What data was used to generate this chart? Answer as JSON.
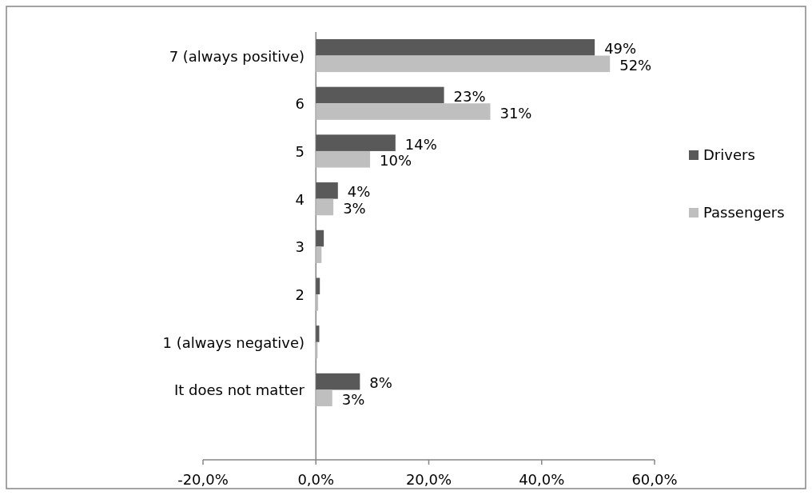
{
  "chart_data": {
    "type": "bar",
    "orientation": "horizontal",
    "categories": [
      "7 (always positive)",
      "6",
      "5",
      "4",
      "3",
      "2",
      "1 (always negative)",
      "It does not matter"
    ],
    "series": [
      {
        "name": "Drivers",
        "color": "#595959",
        "values": [
          49.4,
          22.7,
          14.1,
          3.9,
          1.4,
          0.7,
          0.6,
          7.8
        ],
        "value_labels": [
          "49%",
          "23%",
          "14%",
          "4%",
          null,
          null,
          null,
          "8%"
        ]
      },
      {
        "name": "Passengers",
        "color": "#bfbfbf",
        "values": [
          52.1,
          30.9,
          9.6,
          3.1,
          1.0,
          0.4,
          0.3,
          2.9
        ],
        "value_labels": [
          "52%",
          "31%",
          "10%",
          "3%",
          null,
          null,
          null,
          "3%"
        ]
      }
    ],
    "xlim": [
      -20,
      60
    ],
    "xticks": [
      {
        "value": -20,
        "label": "-20,0%"
      },
      {
        "value": 0,
        "label": "0,0%"
      },
      {
        "value": 20,
        "label": "20,0%"
      },
      {
        "value": 40,
        "label": "40,0%"
      },
      {
        "value": 60,
        "label": "60,0%"
      }
    ],
    "grid": false,
    "legend": "right"
  }
}
